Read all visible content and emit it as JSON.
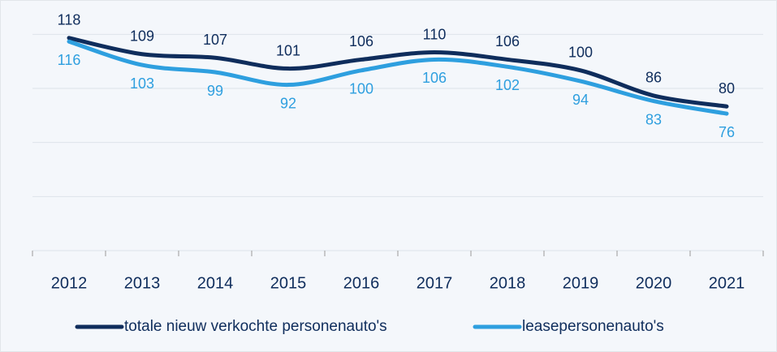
{
  "chart_data": {
    "type": "line",
    "categories": [
      "2012",
      "2013",
      "2014",
      "2015",
      "2016",
      "2017",
      "2018",
      "2019",
      "2020",
      "2021"
    ],
    "series": [
      {
        "name": "totale nieuw verkochte personenauto's",
        "color": "#0f2d5c",
        "values": [
          118,
          109,
          107,
          101,
          106,
          110,
          106,
          100,
          86,
          80
        ]
      },
      {
        "name": "leasepersonenauto's",
        "color": "#2e9fdf",
        "values": [
          116,
          103,
          99,
          92,
          100,
          106,
          102,
          94,
          83,
          76
        ]
      }
    ],
    "ylim": [
      0,
      135
    ],
    "yticks": [
      0,
      30,
      60,
      90,
      120
    ],
    "grid": true,
    "legend": "bottom"
  }
}
